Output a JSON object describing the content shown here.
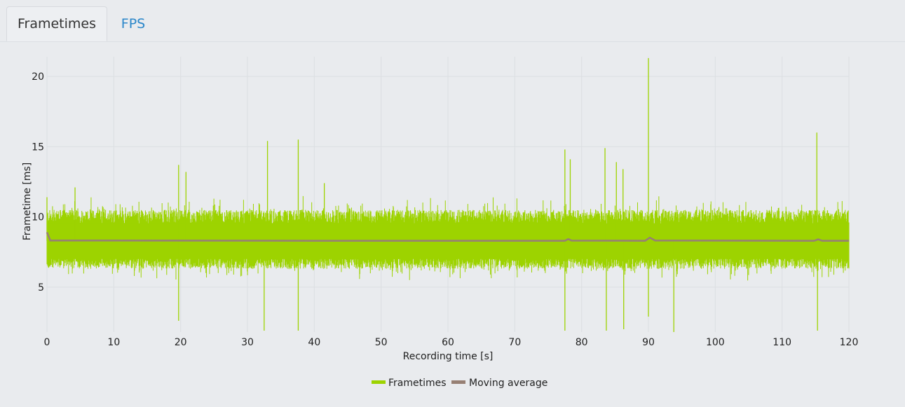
{
  "tabs": [
    {
      "label": "Frametimes",
      "active": true
    },
    {
      "label": "FPS",
      "active": false
    }
  ],
  "colors": {
    "frametimes": "#9dd300",
    "moving_average": "#978074",
    "tab_link": "#2a86c9",
    "grid": "#dcdfe2",
    "axis_text": "#1f1f1f"
  },
  "chart_data": {
    "type": "line",
    "title": "",
    "xlabel": "Recording time [s]",
    "ylabel": "Frametime [ms]",
    "xlim": [
      0,
      120
    ],
    "ylim": [
      1.8,
      21.4
    ],
    "xticks": [
      0,
      10,
      20,
      30,
      40,
      50,
      60,
      70,
      80,
      90,
      100,
      110,
      120
    ],
    "yticks": [
      5,
      10,
      15,
      20
    ],
    "grid": true,
    "legend_position": "bottom-center",
    "series": [
      {
        "name": "Frametimes",
        "description": "dense per-frame samples oscillating roughly between 6.3 and 10.5 ms, mean about 8.3 ms",
        "band": {
          "low": 6.3,
          "high": 10.5,
          "mean": 8.3
        },
        "spikes": [
          [
            0.0,
            11.4
          ],
          [
            4.2,
            12.1
          ],
          [
            19.7,
            13.7
          ],
          [
            19.7,
            2.6
          ],
          [
            20.8,
            13.2
          ],
          [
            32.5,
            1.9
          ],
          [
            33.0,
            15.4
          ],
          [
            37.6,
            15.5
          ],
          [
            37.6,
            1.9
          ],
          [
            41.5,
            12.4
          ],
          [
            77.5,
            14.8
          ],
          [
            77.5,
            1.9
          ],
          [
            78.3,
            14.1
          ],
          [
            83.5,
            14.9
          ],
          [
            83.7,
            1.9
          ],
          [
            85.2,
            13.9
          ],
          [
            86.2,
            13.4
          ],
          [
            86.3,
            2.0
          ],
          [
            90.0,
            21.3
          ],
          [
            90.0,
            2.9
          ],
          [
            93.8,
            1.8
          ],
          [
            115.2,
            16.0
          ],
          [
            115.3,
            1.9
          ]
        ]
      },
      {
        "name": "Moving average",
        "points": [
          [
            0.0,
            8.9
          ],
          [
            0.5,
            8.32
          ],
          [
            20,
            8.31
          ],
          [
            40,
            8.3
          ],
          [
            60,
            8.3
          ],
          [
            77.5,
            8.3
          ],
          [
            78.0,
            8.42
          ],
          [
            78.5,
            8.31
          ],
          [
            89.5,
            8.3
          ],
          [
            90.2,
            8.52
          ],
          [
            91.0,
            8.32
          ],
          [
            114.8,
            8.3
          ],
          [
            115.4,
            8.4
          ],
          [
            116.0,
            8.3
          ],
          [
            120,
            8.3
          ]
        ]
      }
    ]
  }
}
